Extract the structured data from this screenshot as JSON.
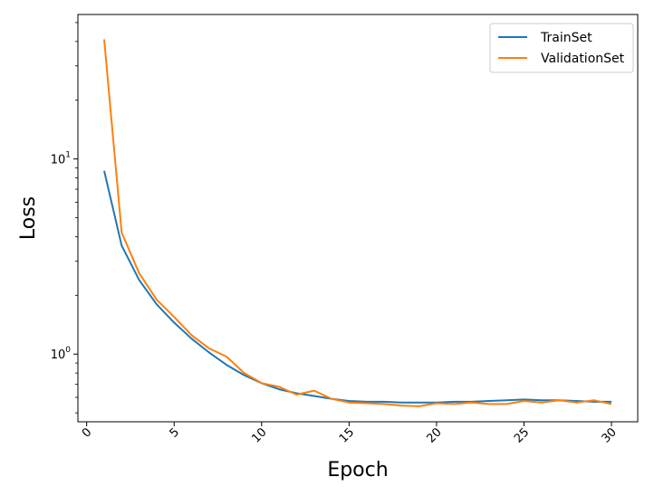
{
  "chart_data": {
    "type": "line",
    "title": "",
    "xlabel": "Epoch",
    "ylabel": "Loss",
    "xlim": [
      -0.5,
      31.5
    ],
    "ylim": [
      0.45,
      55
    ],
    "yscale": "log",
    "xticks": [
      0,
      5,
      10,
      15,
      20,
      25,
      30
    ],
    "xtick_labels": [
      "0",
      "5",
      "10",
      "15",
      "20",
      "25",
      "30"
    ],
    "yticks": [
      1,
      10
    ],
    "ytick_labels": [
      {
        "base": "10",
        "exp": "0"
      },
      {
        "base": "10",
        "exp": "1"
      }
    ],
    "grid": false,
    "legend_position": "top-right",
    "x": [
      1,
      2,
      3,
      4,
      5,
      6,
      7,
      8,
      9,
      10,
      11,
      12,
      13,
      14,
      15,
      16,
      17,
      18,
      19,
      20,
      21,
      22,
      23,
      24,
      25,
      26,
      27,
      28,
      29,
      30
    ],
    "series": [
      {
        "name": "TrainSet",
        "color": "#1f77b4",
        "values": [
          8.7,
          3.6,
          2.4,
          1.8,
          1.45,
          1.2,
          1.02,
          0.88,
          0.78,
          0.71,
          0.66,
          0.63,
          0.61,
          0.59,
          0.575,
          0.57,
          0.57,
          0.565,
          0.565,
          0.565,
          0.57,
          0.57,
          0.575,
          0.58,
          0.585,
          0.58,
          0.58,
          0.575,
          0.57,
          0.57
        ]
      },
      {
        "name": "ValidationSet",
        "color": "#ff7f0e",
        "values": [
          41.0,
          4.2,
          2.6,
          1.9,
          1.55,
          1.25,
          1.07,
          0.97,
          0.8,
          0.71,
          0.68,
          0.62,
          0.65,
          0.59,
          0.565,
          0.56,
          0.555,
          0.545,
          0.54,
          0.56,
          0.555,
          0.565,
          0.555,
          0.555,
          0.575,
          0.565,
          0.58,
          0.565,
          0.58,
          0.555
        ]
      }
    ]
  }
}
